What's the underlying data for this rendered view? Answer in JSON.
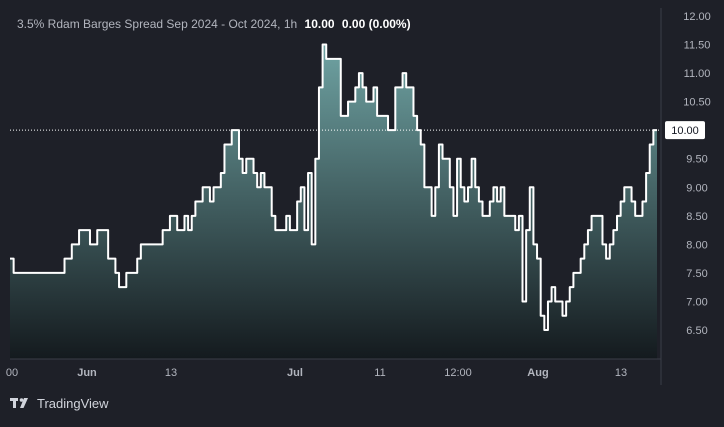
{
  "legend": {
    "symbol_title": "3.5% Rdam Barges Spread Sep 2024 - Oct 2024, 1h",
    "last_value": "10.00",
    "change": "0.00 (0.00%)"
  },
  "branding": {
    "name": "TradingView",
    "icon": "tradingview-logo-icon"
  },
  "colors": {
    "background": "#1e2028",
    "line": "#ffffff",
    "area_top": "#6fa3a3",
    "area_bottom": "#141a1e",
    "price_label_bg": "#ffffff"
  },
  "chart_data": {
    "type": "area",
    "title": "3.5% Rdam Barges Spread Sep 2024 - Oct 2024, 1h",
    "xlabel": "",
    "ylabel": "",
    "x_tick_labels": [
      "00",
      "Jun",
      "13",
      "Jul",
      "11",
      "12:00",
      "Aug",
      "13"
    ],
    "y_tick_labels": [
      "6.50",
      "7.00",
      "7.50",
      "8.00",
      "8.50",
      "9.00",
      "9.50",
      "10.00",
      "10.50",
      "11.00",
      "11.50",
      "12.00"
    ],
    "ylim": [
      6.0,
      12.25
    ],
    "last_value": 10.0,
    "last_value_label": "10.00",
    "grid": false,
    "series": [
      {
        "values": [
          7.75,
          7.5,
          7.5,
          7.5,
          7.5,
          7.5,
          7.5,
          7.5,
          7.5,
          7.5,
          7.5,
          7.5,
          7.5,
          7.5,
          7.5,
          7.75,
          7.75,
          8.0,
          8.0,
          8.25,
          8.25,
          8.25,
          8.0,
          8.0,
          8.25,
          8.25,
          8.25,
          7.75,
          7.75,
          7.5,
          7.25,
          7.25,
          7.5,
          7.5,
          7.5,
          7.75,
          8.0,
          8.0,
          8.0,
          8.0,
          8.0,
          8.0,
          8.25,
          8.25,
          8.5,
          8.5,
          8.25,
          8.25,
          8.5,
          8.25,
          8.5,
          8.75,
          8.75,
          9.0,
          9.0,
          8.75,
          9.0,
          9.0,
          9.25,
          9.75,
          9.75,
          10.0,
          10.0,
          9.5,
          9.25,
          9.5,
          9.5,
          9.25,
          9.0,
          9.25,
          9.0,
          9.0,
          8.5,
          8.25,
          8.25,
          8.25,
          8.5,
          8.25,
          8.25,
          8.75,
          9.0,
          8.25,
          9.25,
          8.0,
          9.5,
          10.75,
          11.5,
          11.25,
          11.25,
          11.25,
          11.25,
          10.25,
          10.25,
          10.5,
          10.5,
          10.75,
          11.0,
          10.75,
          10.5,
          10.5,
          10.75,
          10.25,
          10.25,
          10.25,
          10.0,
          10.0,
          10.75,
          10.75,
          11.0,
          10.75,
          10.75,
          10.25,
          10.0,
          9.75,
          9.0,
          9.0,
          8.5,
          9.0,
          9.75,
          9.5,
          9.5,
          9.0,
          8.5,
          9.5,
          9.0,
          8.75,
          9.0,
          9.5,
          9.0,
          8.75,
          8.5,
          8.5,
          8.75,
          9.0,
          8.75,
          9.0,
          8.5,
          8.5,
          8.5,
          8.25,
          8.5,
          7.0,
          8.25,
          9.0,
          8.0,
          7.75,
          6.75,
          6.5,
          7.0,
          7.25,
          7.0,
          7.0,
          6.75,
          7.0,
          7.25,
          7.5,
          7.5,
          7.75,
          8.0,
          8.25,
          8.5,
          8.5,
          8.5,
          8.0,
          7.75,
          8.0,
          8.25,
          8.5,
          8.75,
          9.0,
          9.0,
          8.75,
          8.5,
          8.5,
          8.75,
          9.25,
          9.75,
          10.0,
          10.0
        ]
      }
    ]
  }
}
